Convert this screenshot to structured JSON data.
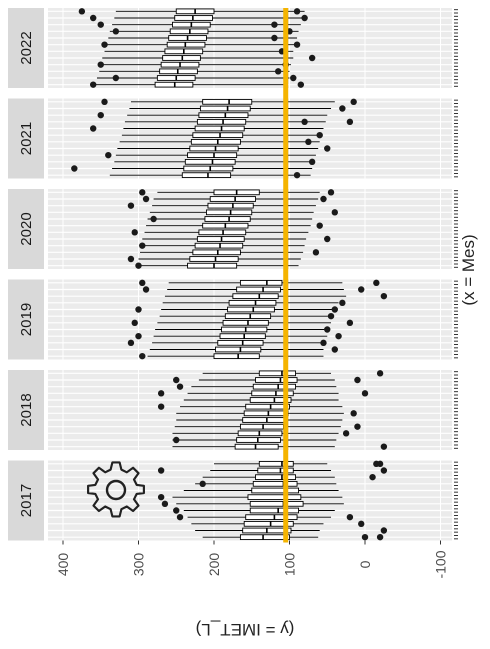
{
  "chart_data": {
    "type": "boxplot",
    "orientation": "rotated-90",
    "xlabel": "(x = Mes)",
    "ylabel": "(y = IMET_L)",
    "ylim": [
      -125,
      425
    ],
    "yticks": [
      400,
      300,
      200,
      100,
      0,
      -100
    ],
    "ytick_labels": [
      "400",
      "300",
      "200",
      "100",
      "0",
      "-100"
    ],
    "grid": true,
    "reference_line": {
      "value": 105,
      "color": "#f5b400"
    },
    "colors": {
      "panel": "#ebebeb",
      "strip": "#d9d9d9",
      "grid": "#ffffff",
      "box": "#000000"
    },
    "icon": "gear-icon",
    "panels": [
      {
        "label": "2017",
        "boxes": [
          {
            "min": 50,
            "q1": 95,
            "median": 110,
            "q3": 140,
            "max": 200
          },
          {
            "min": 45,
            "q1": 95,
            "median": 112,
            "q3": 142,
            "max": 205
          },
          {
            "min": 40,
            "q1": 92,
            "median": 110,
            "q3": 145,
            "max": 215
          },
          {
            "min": 38,
            "q1": 90,
            "median": 108,
            "q3": 148,
            "max": 225
          },
          {
            "min": 35,
            "q1": 88,
            "median": 105,
            "q3": 150,
            "max": 240
          },
          {
            "min": 30,
            "q1": 85,
            "median": 104,
            "q3": 155,
            "max": 255
          },
          {
            "min": 28,
            "q1": 82,
            "median": 108,
            "q3": 152,
            "max": 250
          },
          {
            "min": 40,
            "q1": 88,
            "median": 115,
            "q3": 152,
            "max": 240
          },
          {
            "min": 45,
            "q1": 90,
            "median": 120,
            "q3": 158,
            "max": 235
          },
          {
            "min": 55,
            "q1": 95,
            "median": 125,
            "q3": 160,
            "max": 230
          },
          {
            "min": 60,
            "q1": 98,
            "median": 130,
            "q3": 162,
            "max": 225
          },
          {
            "min": 62,
            "q1": 100,
            "median": 135,
            "q3": 165,
            "max": 215
          }
        ],
        "outliers": [
          [
            0,
            -20
          ],
          [
            0,
            -15
          ],
          [
            1,
            -25
          ],
          [
            1,
            270
          ],
          [
            2,
            -10
          ],
          [
            3,
            215
          ],
          [
            5,
            270
          ],
          [
            6,
            265
          ],
          [
            7,
            250
          ],
          [
            8,
            20
          ],
          [
            8,
            245
          ],
          [
            9,
            5
          ],
          [
            10,
            -25
          ],
          [
            11,
            0
          ],
          [
            11,
            -20
          ]
        ]
      },
      {
        "label": "2018",
        "boxes": [
          {
            "min": 45,
            "q1": 92,
            "median": 110,
            "q3": 140,
            "max": 215
          },
          {
            "min": 40,
            "q1": 90,
            "median": 112,
            "q3": 145,
            "max": 220
          },
          {
            "min": 38,
            "q1": 92,
            "median": 115,
            "q3": 148,
            "max": 230
          },
          {
            "min": 35,
            "q1": 95,
            "median": 118,
            "q3": 150,
            "max": 235
          },
          {
            "min": 35,
            "q1": 98,
            "median": 120,
            "q3": 152,
            "max": 240
          },
          {
            "min": 30,
            "q1": 100,
            "median": 125,
            "q3": 158,
            "max": 245
          },
          {
            "min": 28,
            "q1": 102,
            "median": 128,
            "q3": 160,
            "max": 250
          },
          {
            "min": 30,
            "q1": 105,
            "median": 130,
            "q3": 162,
            "max": 250
          },
          {
            "min": 32,
            "q1": 108,
            "median": 135,
            "q3": 165,
            "max": 252
          },
          {
            "min": 35,
            "q1": 110,
            "median": 140,
            "q3": 168,
            "max": 255
          },
          {
            "min": 38,
            "q1": 112,
            "median": 142,
            "q3": 170,
            "max": 255
          },
          {
            "min": 40,
            "q1": 115,
            "median": 145,
            "q3": 172,
            "max": 255
          }
        ],
        "outliers": [
          [
            0,
            -20
          ],
          [
            1,
            250
          ],
          [
            1,
            10
          ],
          [
            2,
            245
          ],
          [
            3,
            270
          ],
          [
            3,
            0
          ],
          [
            5,
            270
          ],
          [
            6,
            15
          ],
          [
            8,
            10
          ],
          [
            9,
            25
          ],
          [
            10,
            250
          ],
          [
            11,
            -25
          ]
        ]
      },
      {
        "label": "2019",
        "boxes": [
          {
            "min": 30,
            "q1": 110,
            "median": 130,
            "q3": 165,
            "max": 260
          },
          {
            "min": 28,
            "q1": 112,
            "median": 135,
            "q3": 170,
            "max": 262
          },
          {
            "min": 25,
            "q1": 115,
            "median": 140,
            "q3": 175,
            "max": 265
          },
          {
            "min": 35,
            "q1": 118,
            "median": 145,
            "q3": 180,
            "max": 268
          },
          {
            "min": 40,
            "q1": 120,
            "median": 148,
            "q3": 182,
            "max": 270
          },
          {
            "min": 45,
            "q1": 125,
            "median": 152,
            "q3": 185,
            "max": 272
          },
          {
            "min": 45,
            "q1": 128,
            "median": 155,
            "q3": 188,
            "max": 275
          },
          {
            "min": 50,
            "q1": 130,
            "median": 158,
            "q3": 190,
            "max": 278
          },
          {
            "min": 50,
            "q1": 132,
            "median": 160,
            "q3": 192,
            "max": 280
          },
          {
            "min": 52,
            "q1": 135,
            "median": 162,
            "q3": 195,
            "max": 282
          },
          {
            "min": 55,
            "q1": 138,
            "median": 165,
            "q3": 198,
            "max": 285
          },
          {
            "min": 55,
            "q1": 140,
            "median": 168,
            "q3": 200,
            "max": 288
          }
        ],
        "outliers": [
          [
            0,
            295
          ],
          [
            0,
            -15
          ],
          [
            1,
            290
          ],
          [
            1,
            5
          ],
          [
            2,
            -25
          ],
          [
            3,
            30
          ],
          [
            4,
            300
          ],
          [
            4,
            40
          ],
          [
            5,
            45
          ],
          [
            6,
            305
          ],
          [
            6,
            20
          ],
          [
            7,
            50
          ],
          [
            8,
            300
          ],
          [
            8,
            35
          ],
          [
            9,
            310
          ],
          [
            9,
            55
          ],
          [
            10,
            40
          ],
          [
            11,
            295
          ]
        ]
      },
      {
        "label": "2020",
        "boxes": [
          {
            "min": 60,
            "q1": 140,
            "median": 170,
            "q3": 200,
            "max": 275
          },
          {
            "min": 62,
            "q1": 145,
            "median": 172,
            "q3": 205,
            "max": 280
          },
          {
            "min": 65,
            "q1": 148,
            "median": 175,
            "q3": 208,
            "max": 282
          },
          {
            "min": 68,
            "q1": 150,
            "median": 178,
            "q3": 210,
            "max": 285
          },
          {
            "min": 70,
            "q1": 152,
            "median": 180,
            "q3": 212,
            "max": 288
          },
          {
            "min": 72,
            "q1": 155,
            "median": 185,
            "q3": 215,
            "max": 290
          },
          {
            "min": 75,
            "q1": 158,
            "median": 188,
            "q3": 220,
            "max": 292
          },
          {
            "min": 78,
            "q1": 160,
            "median": 190,
            "q3": 222,
            "max": 295
          },
          {
            "min": 80,
            "q1": 162,
            "median": 192,
            "q3": 225,
            "max": 295
          },
          {
            "min": 82,
            "q1": 165,
            "median": 195,
            "q3": 228,
            "max": 298
          },
          {
            "min": 85,
            "q1": 168,
            "median": 198,
            "q3": 232,
            "max": 300
          },
          {
            "min": 88,
            "q1": 170,
            "median": 200,
            "q3": 235,
            "max": 300
          }
        ],
        "outliers": [
          [
            0,
            295
          ],
          [
            0,
            45
          ],
          [
            1,
            290
          ],
          [
            1,
            55
          ],
          [
            2,
            310
          ],
          [
            3,
            40
          ],
          [
            4,
            280
          ],
          [
            5,
            60
          ],
          [
            6,
            305
          ],
          [
            7,
            50
          ],
          [
            8,
            295
          ],
          [
            9,
            65
          ],
          [
            10,
            310
          ],
          [
            11,
            300
          ]
        ]
      },
      {
        "label": "2021",
        "boxes": [
          {
            "min": 40,
            "q1": 150,
            "median": 180,
            "q3": 215,
            "max": 310
          },
          {
            "min": 45,
            "q1": 152,
            "median": 182,
            "q3": 218,
            "max": 312
          },
          {
            "min": 50,
            "q1": 155,
            "median": 185,
            "q3": 220,
            "max": 315
          },
          {
            "min": 52,
            "q1": 158,
            "median": 188,
            "q3": 222,
            "max": 318
          },
          {
            "min": 55,
            "q1": 160,
            "median": 190,
            "q3": 225,
            "max": 320
          },
          {
            "min": 58,
            "q1": 162,
            "median": 192,
            "q3": 228,
            "max": 322
          },
          {
            "min": 60,
            "q1": 165,
            "median": 195,
            "q3": 230,
            "max": 325
          },
          {
            "min": 62,
            "q1": 168,
            "median": 198,
            "q3": 232,
            "max": 328
          },
          {
            "min": 65,
            "q1": 170,
            "median": 200,
            "q3": 235,
            "max": 330
          },
          {
            "min": 68,
            "q1": 172,
            "median": 202,
            "q3": 238,
            "max": 332
          },
          {
            "min": 70,
            "q1": 175,
            "median": 205,
            "q3": 240,
            "max": 335
          },
          {
            "min": 72,
            "q1": 178,
            "median": 208,
            "q3": 242,
            "max": 338
          }
        ],
        "outliers": [
          [
            0,
            345
          ],
          [
            0,
            15
          ],
          [
            1,
            30
          ],
          [
            2,
            350
          ],
          [
            3,
            80
          ],
          [
            3,
            20
          ],
          [
            4,
            360
          ],
          [
            5,
            60
          ],
          [
            6,
            75
          ],
          [
            7,
            50
          ],
          [
            8,
            340
          ],
          [
            9,
            70
          ],
          [
            10,
            385
          ],
          [
            11,
            90
          ]
        ]
      },
      {
        "label": "2022",
        "boxes": [
          {
            "min": 80,
            "q1": 200,
            "median": 225,
            "q3": 250,
            "max": 330
          },
          {
            "min": 82,
            "q1": 202,
            "median": 228,
            "q3": 252,
            "max": 332
          },
          {
            "min": 85,
            "q1": 205,
            "median": 230,
            "q3": 255,
            "max": 335
          },
          {
            "min": 88,
            "q1": 208,
            "median": 232,
            "q3": 258,
            "max": 338
          },
          {
            "min": 90,
            "q1": 210,
            "median": 235,
            "q3": 260,
            "max": 340
          },
          {
            "min": 92,
            "q1": 212,
            "median": 238,
            "q3": 262,
            "max": 342
          },
          {
            "min": 95,
            "q1": 215,
            "median": 240,
            "q3": 265,
            "max": 345
          },
          {
            "min": 95,
            "q1": 218,
            "median": 242,
            "q3": 268,
            "max": 348
          },
          {
            "min": 98,
            "q1": 220,
            "median": 245,
            "q3": 270,
            "max": 350
          },
          {
            "min": 100,
            "q1": 222,
            "median": 248,
            "q3": 272,
            "max": 352
          },
          {
            "min": 100,
            "q1": 225,
            "median": 250,
            "q3": 275,
            "max": 355
          },
          {
            "min": 102,
            "q1": 228,
            "median": 252,
            "q3": 278,
            "max": 358
          }
        ],
        "outliers": [
          [
            0,
            375
          ],
          [
            0,
            90
          ],
          [
            1,
            360
          ],
          [
            1,
            80
          ],
          [
            2,
            350
          ],
          [
            2,
            120
          ],
          [
            3,
            330
          ],
          [
            3,
            100
          ],
          [
            4,
            120
          ],
          [
            5,
            345
          ],
          [
            5,
            90
          ],
          [
            6,
            110
          ],
          [
            7,
            70
          ],
          [
            8,
            350
          ],
          [
            8,
            105
          ],
          [
            9,
            115
          ],
          [
            10,
            330
          ],
          [
            10,
            95
          ],
          [
            11,
            360
          ],
          [
            11,
            85
          ]
        ]
      }
    ]
  }
}
